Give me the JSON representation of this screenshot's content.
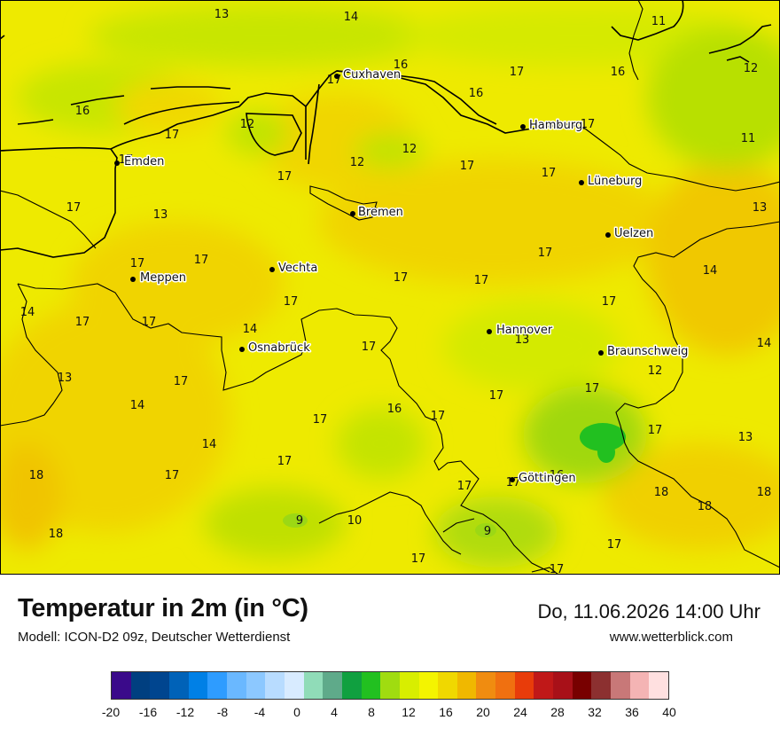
{
  "map": {
    "cities": [
      {
        "name": "Cuxhaven",
        "icon": "city-dot"
      },
      {
        "name": "Hamburg",
        "icon": "city-dot"
      },
      {
        "name": "Emden",
        "icon": "city-dot"
      },
      {
        "name": "Lüneburg",
        "icon": "city-dot"
      },
      {
        "name": "Bremen",
        "icon": "city-dot"
      },
      {
        "name": "Uelzen",
        "icon": "city-dot"
      },
      {
        "name": "Vechta",
        "icon": "city-dot"
      },
      {
        "name": "Meppen",
        "icon": "city-dot"
      },
      {
        "name": "Hannover",
        "icon": "city-dot"
      },
      {
        "name": "Osnabrück",
        "icon": "city-dot"
      },
      {
        "name": "Braunschweig",
        "icon": "city-dot"
      },
      {
        "name": "Göttingen",
        "icon": "city-dot"
      }
    ],
    "values": [
      "13",
      "14",
      "11",
      "16",
      "17",
      "16",
      "12",
      "17",
      "16",
      "16",
      "17",
      "12",
      "11",
      "17",
      "12",
      "12",
      "17",
      "17",
      "17",
      "17",
      "17",
      "13",
      "17",
      "13",
      "17",
      "17",
      "14",
      "17",
      "17",
      "14",
      "17",
      "17",
      "17",
      "17",
      "13",
      "14",
      "17",
      "17",
      "13",
      "12",
      "17",
      "17",
      "14",
      "16",
      "17",
      "17",
      "14",
      "17",
      "13",
      "18",
      "17",
      "17",
      "16",
      "18",
      "18",
      "18",
      "9",
      "10",
      "9",
      "18",
      "17",
      "17",
      "17"
    ],
    "colors": {
      "coast": "#000000",
      "border": "#000000",
      "land_base": "#f0ea00"
    }
  },
  "footer": {
    "title": "Temperatur in 2m (in °C)",
    "subtitle": "Modell: ICON-D2 09z, Deutscher Wetterdienst",
    "datetime": "Do, 11.06.2026 14:00 Uhr",
    "website": "www.wetterblick.com"
  },
  "legend": {
    "ticks": [
      "-20",
      "-16",
      "-12",
      "-8",
      "-4",
      "0",
      "4",
      "8",
      "12",
      "16",
      "20",
      "24",
      "28",
      "32",
      "36",
      "40"
    ],
    "colors": [
      "#3a0a8a",
      "#003f80",
      "#00458f",
      "#0062b8",
      "#0080e6",
      "#2e9cff",
      "#6ab8ff",
      "#8cc8ff",
      "#b8dcff",
      "#d8ebff",
      "#90dcb8",
      "#5faa8a",
      "#10a040",
      "#22c020",
      "#a0dc10",
      "#d8ee00",
      "#f4f400",
      "#f0d800",
      "#f0b800",
      "#f08c10",
      "#f07010",
      "#e83c0a",
      "#c01818",
      "#a81018",
      "#780000",
      "#8c3030",
      "#c87878",
      "#f4b4b4",
      "#ffe0e0"
    ]
  }
}
